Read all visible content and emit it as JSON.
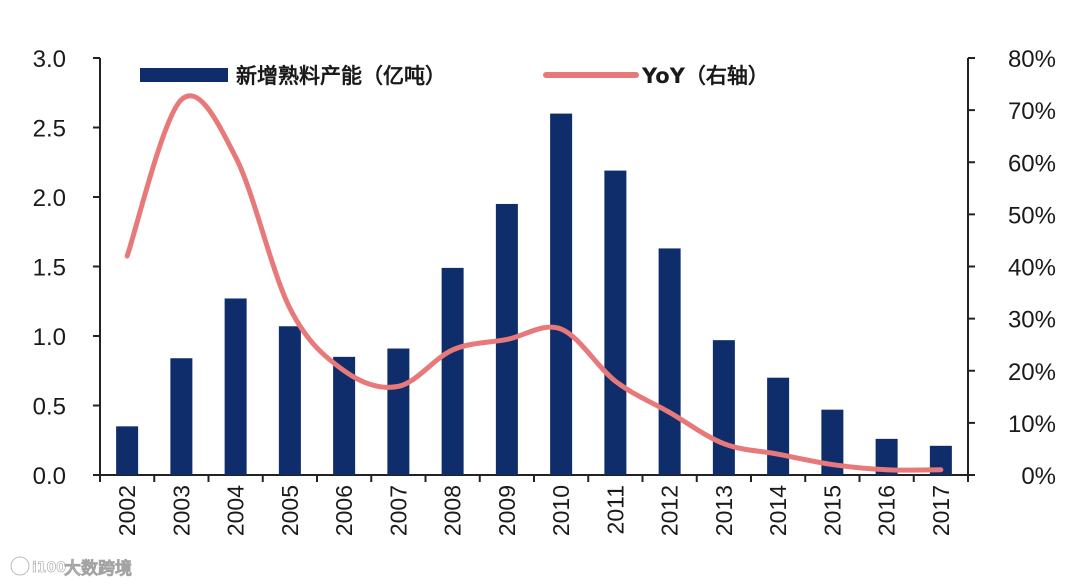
{
  "chart_data": {
    "type": "bar+line",
    "categories": [
      "2002",
      "2003",
      "2004",
      "2005",
      "2006",
      "2007",
      "2008",
      "2009",
      "2010",
      "2011",
      "2012",
      "2013",
      "2014",
      "2015",
      "2016",
      "2017"
    ],
    "series": [
      {
        "name": "新增熟料产能（亿吨）",
        "type": "bar",
        "axis": "left",
        "color": "#0f2d6b",
        "values": [
          0.35,
          0.84,
          1.27,
          1.07,
          0.85,
          0.91,
          1.49,
          1.95,
          2.6,
          2.19,
          1.63,
          0.97,
          0.7,
          0.47,
          0.26,
          0.21
        ]
      },
      {
        "name": "YoY（右轴）",
        "type": "line",
        "axis": "right",
        "color": "#e8797a",
        "values": [
          0.42,
          0.72,
          0.61,
          0.32,
          0.2,
          0.17,
          0.24,
          0.26,
          0.28,
          0.18,
          0.12,
          0.06,
          0.04,
          0.02,
          0.01,
          0.01
        ]
      }
    ],
    "y_left": {
      "lim": [
        0,
        3.0
      ],
      "ticks": [
        "0.0",
        "0.5",
        "1.0",
        "1.5",
        "2.0",
        "2.5",
        "3.0"
      ]
    },
    "y_right": {
      "lim": [
        0,
        0.8
      ],
      "ticks": [
        "0%",
        "10%",
        "20%",
        "30%",
        "40%",
        "50%",
        "60%",
        "70%",
        "80%"
      ]
    },
    "legend": {
      "position": "top"
    }
  },
  "watermark": {
    "logo_text": "i100",
    "text": "大数跨境"
  }
}
